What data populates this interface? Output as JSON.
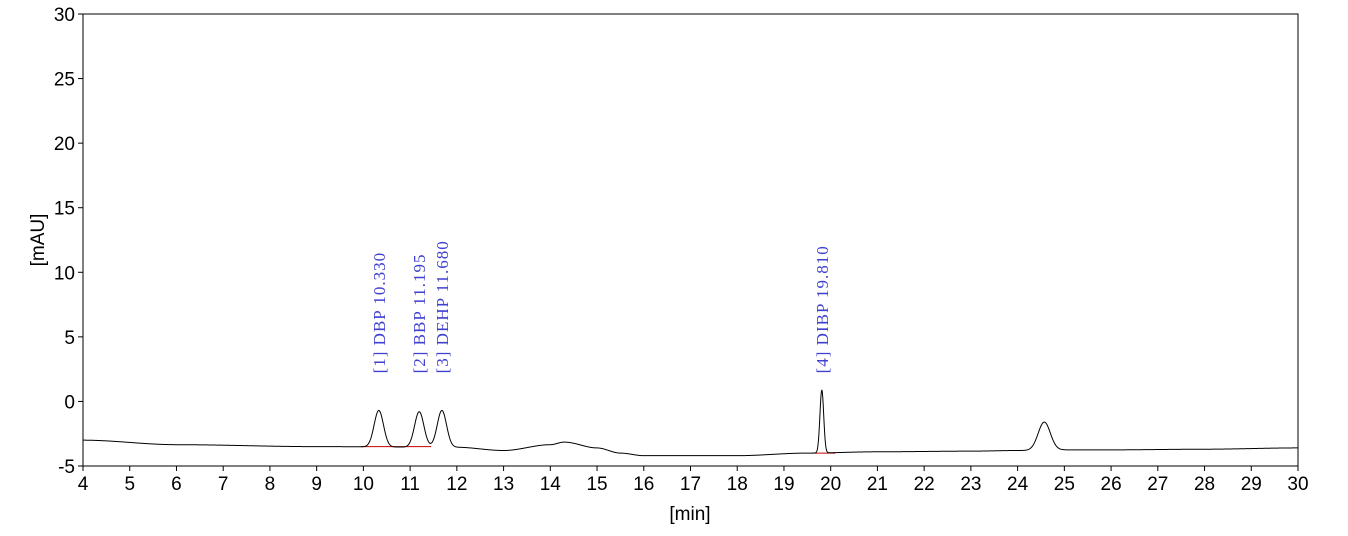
{
  "chart_data": {
    "type": "line",
    "xlabel": "[min]",
    "ylabel": "[mAU]",
    "xlim": [
      4,
      30
    ],
    "ylim": [
      -5,
      30
    ],
    "x_ticks": [
      "4",
      "5",
      "6",
      "7",
      "8",
      "9",
      "10",
      "11",
      "12",
      "13",
      "14",
      "15",
      "16",
      "17",
      "18",
      "19",
      "20",
      "21",
      "22",
      "23",
      "24",
      "25",
      "26",
      "27",
      "28",
      "29",
      "30"
    ],
    "y_ticks": [
      "-5",
      "0",
      "5",
      "10",
      "15",
      "20",
      "25",
      "30"
    ],
    "grid": false,
    "legend": "none",
    "trace_color": "#000000",
    "baseline_color": "#cc0000",
    "label_color": "#4040d0",
    "baseline_points": [
      [
        4,
        -3.0
      ],
      [
        6,
        -3.35
      ],
      [
        9,
        -3.5
      ],
      [
        12,
        -3.55
      ],
      [
        13,
        -3.8
      ],
      [
        14,
        -3.35
      ],
      [
        14.3,
        -3.15
      ],
      [
        15,
        -3.6
      ],
      [
        15.5,
        -4.0
      ],
      [
        16,
        -4.2
      ],
      [
        18,
        -4.2
      ],
      [
        19.5,
        -4.0
      ],
      [
        21,
        -3.9
      ],
      [
        23,
        -3.85
      ],
      [
        24,
        -3.8
      ],
      [
        25,
        -3.75
      ],
      [
        26,
        -3.75
      ],
      [
        28,
        -3.7
      ],
      [
        30,
        -3.6
      ]
    ],
    "peaks": [
      {
        "rt": 10.33,
        "apex": -0.7,
        "width": 0.1
      },
      {
        "rt": 11.195,
        "apex": -0.8,
        "width": 0.1
      },
      {
        "rt": 11.68,
        "apex": -0.7,
        "width": 0.1
      },
      {
        "rt": 19.81,
        "apex": 0.9,
        "width": 0.04
      },
      {
        "rt": 24.57,
        "apex": -1.6,
        "width": 0.13
      }
    ],
    "integration_baselines": [
      {
        "x0": 9.95,
        "x1": 11.45,
        "y": -3.5
      },
      {
        "x0": 19.6,
        "x1": 20.1,
        "y": -4.0
      }
    ],
    "annotations": [
      {
        "text": "[1] DBP 10.330",
        "x": 10.33
      },
      {
        "text": "[2] BBP 11.195",
        "x": 11.195
      },
      {
        "text": "[3] DEHP 11.680",
        "x": 11.68
      },
      {
        "text": "[4] DIBP 19.810",
        "x": 19.81
      }
    ]
  }
}
